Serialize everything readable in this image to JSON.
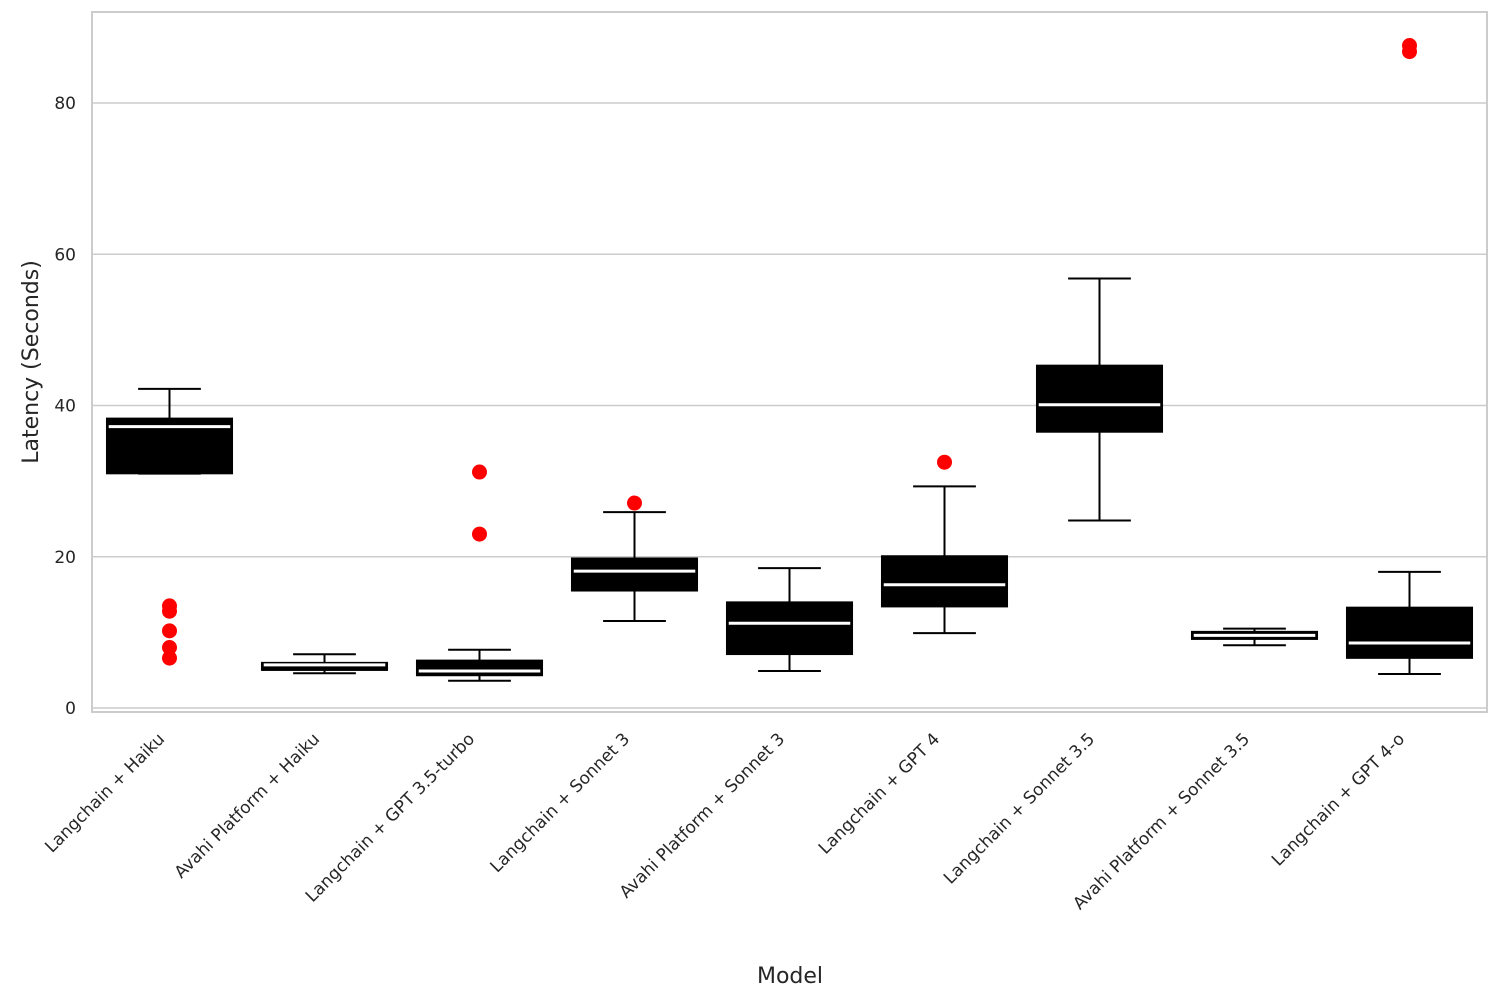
{
  "chart_data": {
    "type": "box",
    "title": "",
    "xlabel": "Model",
    "ylabel": "Latency (Seconds)",
    "ylim": [
      -0.5,
      92
    ],
    "yticks": [
      0,
      20,
      40,
      60,
      80
    ],
    "grid": "horizontal",
    "colors": {
      "box": "#000000",
      "median": "#ffffff",
      "whisker": "#000000",
      "outlier": "#ff0000",
      "grid": "#cccccc"
    },
    "categories": [
      "Langchain + Haiku",
      "Avahi Platform + Haiku",
      "Langchain + GPT 3.5-turbo",
      "Langchain + Sonnet 3",
      "Avahi Platform + Sonnet 3",
      "Langchain + GPT 4",
      "Langchain + Sonnet 3.5",
      "Avahi Platform + Sonnet 3.5",
      "Langchain + GPT 4-o"
    ],
    "boxes": [
      {
        "whislo": 31.0,
        "q1": 31.0,
        "med": 37.2,
        "q3": 38.3,
        "whishi": 42.2,
        "fliers": [
          13.5,
          12.8,
          10.2,
          8.0,
          6.6
        ]
      },
      {
        "whislo": 4.6,
        "q1": 5.0,
        "med": 5.7,
        "q3": 6.0,
        "whishi": 7.1,
        "fliers": []
      },
      {
        "whislo": 3.6,
        "q1": 4.3,
        "med": 4.9,
        "q3": 6.3,
        "whishi": 7.7,
        "fliers": [
          31.2,
          23.0
        ]
      },
      {
        "whislo": 11.5,
        "q1": 15.5,
        "med": 18.1,
        "q3": 19.8,
        "whishi": 25.9,
        "fliers": [
          27.1
        ]
      },
      {
        "whislo": 4.9,
        "q1": 7.1,
        "med": 11.2,
        "q3": 14.0,
        "whishi": 18.5,
        "fliers": []
      },
      {
        "whislo": 9.9,
        "q1": 13.4,
        "med": 16.3,
        "q3": 20.1,
        "whishi": 29.3,
        "fliers": [
          32.5
        ]
      },
      {
        "whislo": 24.8,
        "q1": 36.5,
        "med": 40.1,
        "q3": 45.3,
        "whishi": 56.8,
        "fliers": []
      },
      {
        "whislo": 8.3,
        "q1": 9.1,
        "med": 9.6,
        "q3": 10.1,
        "whishi": 10.5,
        "fliers": []
      },
      {
        "whislo": 4.5,
        "q1": 6.6,
        "med": 8.6,
        "q3": 13.3,
        "whishi": 18.0,
        "fliers": [
          87.6,
          86.8
        ]
      }
    ]
  }
}
